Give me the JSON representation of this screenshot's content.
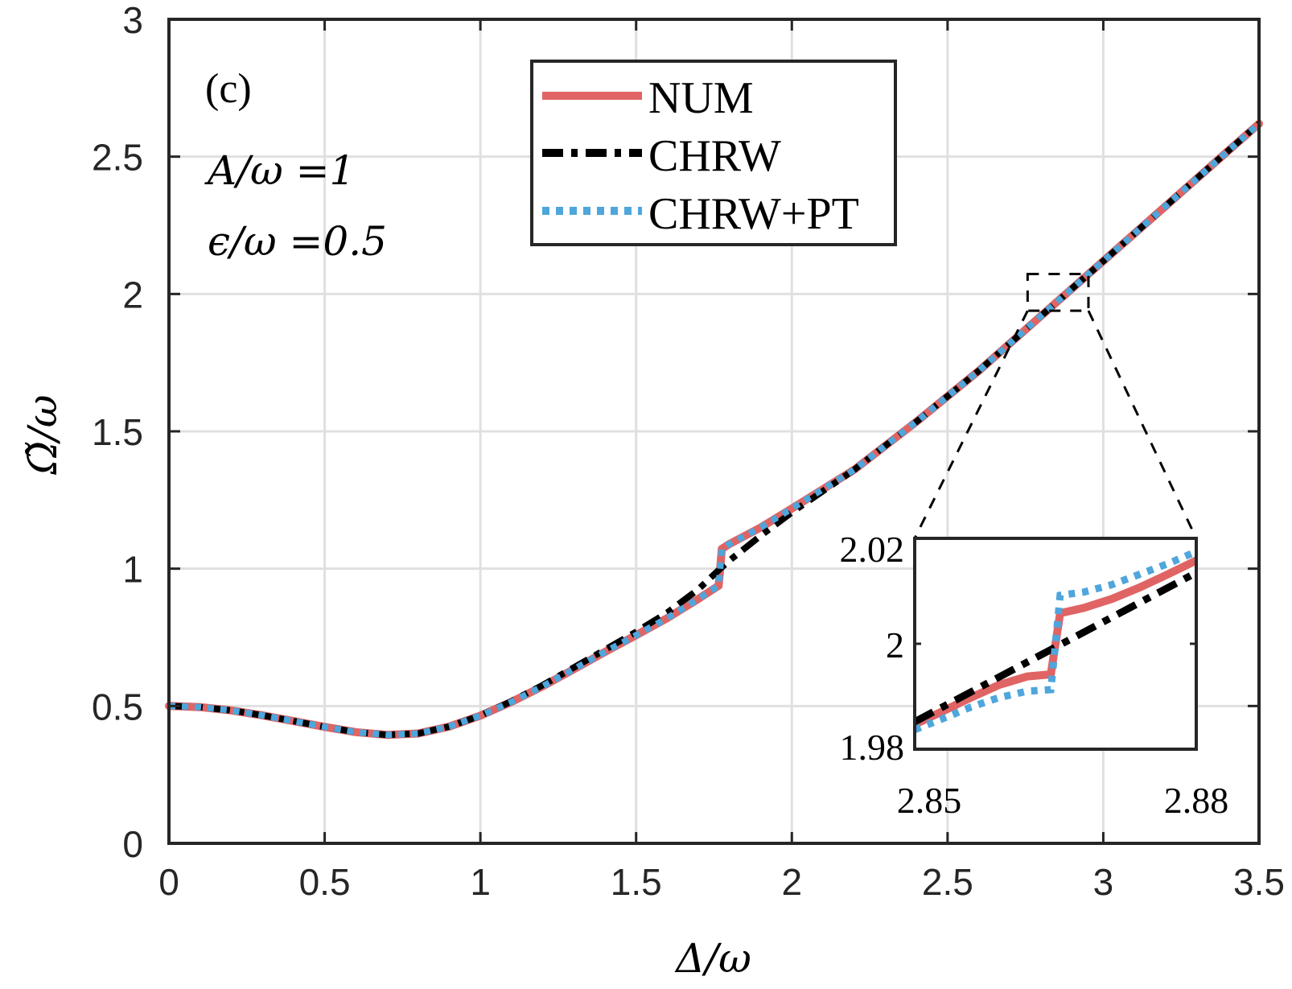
{
  "chart_data": {
    "type": "line",
    "panel_label": "(c)",
    "xlabel": "Δ/ω",
    "ylabel": "Ω̃/ω",
    "xlim": [
      0,
      3.5
    ],
    "ylim": [
      0,
      3
    ],
    "xticks": [
      "0",
      "0.5",
      "1",
      "1.5",
      "2",
      "2.5",
      "3",
      "3.5"
    ],
    "yticks": [
      "0",
      "0.5",
      "1",
      "1.5",
      "2",
      "2.5",
      "3"
    ],
    "grid": true,
    "annotations": [
      "A/ω =1",
      "ϵ/ω =0.5"
    ],
    "legend": {
      "location": "top-center",
      "entries": [
        "NUM",
        "CHRW",
        "CHRW+PT"
      ]
    },
    "colors": {
      "NUM": "#e06464",
      "CHRW": "#000000",
      "CHRW+PT": "#4ea6dc",
      "grid": "#e0e0e0",
      "axis": "#262626"
    },
    "series": [
      {
        "name": "NUM",
        "style": "solid",
        "x": [
          0,
          0.1,
          0.2,
          0.3,
          0.4,
          0.5,
          0.6,
          0.7,
          0.8,
          0.9,
          1.0,
          1.1,
          1.2,
          1.3,
          1.4,
          1.5,
          1.6,
          1.7,
          1.765,
          1.77,
          1.775,
          1.8,
          1.9,
          2.0,
          2.2,
          2.4,
          2.6,
          2.8,
          3.0,
          3.2,
          3.4,
          3.5
        ],
        "y": [
          0.5,
          0.496,
          0.484,
          0.466,
          0.445,
          0.424,
          0.405,
          0.395,
          0.4,
          0.425,
          0.465,
          0.515,
          0.572,
          0.634,
          0.697,
          0.758,
          0.82,
          0.89,
          0.938,
          1.0,
          1.072,
          1.09,
          1.15,
          1.219,
          1.36,
          1.535,
          1.72,
          1.92,
          2.12,
          2.32,
          2.52,
          2.62
        ]
      },
      {
        "name": "CHRW",
        "style": "dashdot",
        "x": [
          0,
          0.1,
          0.2,
          0.3,
          0.4,
          0.5,
          0.6,
          0.7,
          0.8,
          0.9,
          1.0,
          1.1,
          1.2,
          1.3,
          1.4,
          1.5,
          1.6,
          1.7,
          1.77,
          1.8,
          1.9,
          2.0,
          2.2,
          2.4,
          2.6,
          2.8,
          3.0,
          3.2,
          3.4,
          3.5
        ],
        "y": [
          0.5,
          0.496,
          0.484,
          0.466,
          0.445,
          0.424,
          0.405,
          0.395,
          0.4,
          0.425,
          0.465,
          0.517,
          0.576,
          0.64,
          0.705,
          0.77,
          0.84,
          0.925,
          1.0,
          1.03,
          1.12,
          1.205,
          1.36,
          1.535,
          1.72,
          1.92,
          2.12,
          2.32,
          2.52,
          2.62
        ]
      },
      {
        "name": "CHRW+PT",
        "style": "dotted",
        "x": [
          0,
          0.1,
          0.2,
          0.3,
          0.4,
          0.5,
          0.6,
          0.7,
          0.8,
          0.9,
          1.0,
          1.1,
          1.2,
          1.3,
          1.4,
          1.5,
          1.6,
          1.7,
          1.765,
          1.77,
          1.775,
          1.8,
          1.9,
          2.0,
          2.2,
          2.4,
          2.6,
          2.8,
          3.0,
          3.2,
          3.4,
          3.5
        ],
        "y": [
          0.5,
          0.496,
          0.484,
          0.466,
          0.445,
          0.424,
          0.405,
          0.395,
          0.4,
          0.425,
          0.465,
          0.515,
          0.572,
          0.634,
          0.697,
          0.758,
          0.82,
          0.89,
          0.938,
          1.0,
          1.072,
          1.09,
          1.15,
          1.219,
          1.36,
          1.535,
          1.72,
          1.92,
          2.12,
          2.32,
          2.52,
          2.62
        ]
      }
    ],
    "zoom_box": {
      "xlim": [
        2.85,
        2.88
      ],
      "ylim": [
        1.98,
        2.02
      ]
    },
    "inset": {
      "xlim": [
        2.85,
        2.88
      ],
      "ylim": [
        1.98,
        2.02
      ],
      "xticks": [
        "2.85",
        "2.88"
      ],
      "yticks": [
        "1.98",
        "2",
        "2.02"
      ],
      "series": [
        {
          "name": "NUM",
          "x": [
            2.85,
            2.853,
            2.856,
            2.859,
            2.862,
            2.8645,
            2.865,
            2.8655,
            2.868,
            2.871,
            2.874,
            2.877,
            2.88
          ],
          "y": [
            1.9847,
            1.9872,
            1.9898,
            1.9922,
            1.9938,
            1.9942,
            2.0,
            2.0058,
            2.0068,
            2.0085,
            2.0107,
            2.0132,
            2.0158
          ]
        },
        {
          "name": "CHRW",
          "x": [
            2.85,
            2.88
          ],
          "y": [
            1.9852,
            2.0135
          ]
        },
        {
          "name": "CHRW+PT",
          "x": [
            2.85,
            2.853,
            2.856,
            2.859,
            2.862,
            2.8645,
            2.865,
            2.8655,
            2.868,
            2.871,
            2.874,
            2.877,
            2.88
          ],
          "y": [
            1.9837,
            1.9858,
            1.988,
            1.9898,
            1.991,
            1.9913,
            2.0,
            2.0092,
            2.0098,
            2.0112,
            2.0132,
            2.0152,
            2.0175
          ]
        }
      ]
    }
  }
}
